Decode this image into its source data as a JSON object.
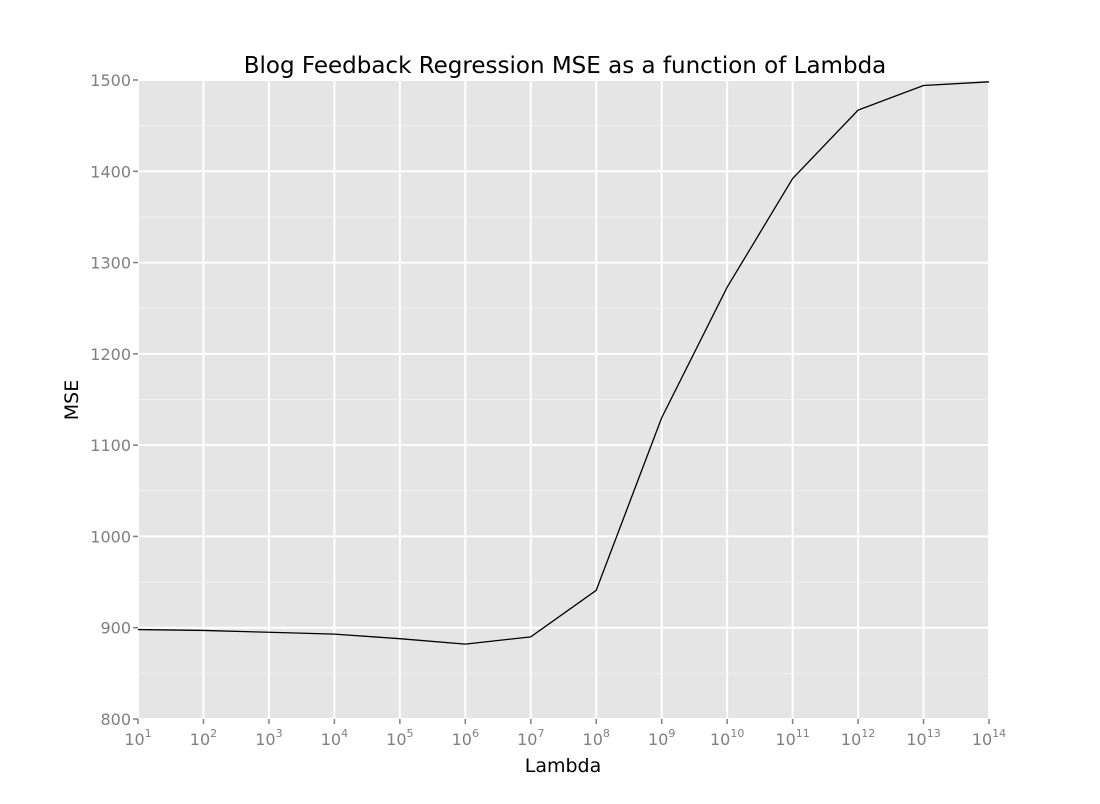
{
  "chart_data": {
    "type": "line",
    "title": "Blog Feedback Regression MSE as a function of Lambda",
    "xlabel": "Lambda",
    "ylabel": "MSE",
    "x_scale": "log",
    "xlim": [
      10,
      100000000000000
    ],
    "ylim": [
      800,
      1500
    ],
    "y_ticks": [
      800,
      900,
      1000,
      1100,
      1200,
      1300,
      1400,
      1500
    ],
    "x_ticks": [
      {
        "base": "10",
        "exp": "1"
      },
      {
        "base": "10",
        "exp": "2"
      },
      {
        "base": "10",
        "exp": "3"
      },
      {
        "base": "10",
        "exp": "4"
      },
      {
        "base": "10",
        "exp": "5"
      },
      {
        "base": "10",
        "exp": "6"
      },
      {
        "base": "10",
        "exp": "7"
      },
      {
        "base": "10",
        "exp": "8"
      },
      {
        "base": "10",
        "exp": "9"
      },
      {
        "base": "10",
        "exp": "10"
      },
      {
        "base": "10",
        "exp": "11"
      },
      {
        "base": "10",
        "exp": "12"
      },
      {
        "base": "10",
        "exp": "13"
      },
      {
        "base": "10",
        "exp": "14"
      }
    ],
    "grid": true,
    "series": [
      {
        "x": [
          10,
          100,
          1000,
          10000,
          100000,
          1000000,
          10000000,
          100000000,
          1000000000,
          10000000000,
          100000000000,
          1000000000000,
          10000000000000,
          100000000000000
        ],
        "values": [
          898,
          897,
          895,
          893,
          888,
          882,
          890,
          941,
          1130,
          1273,
          1392,
          1467,
          1494,
          1498
        ],
        "color": "#000000"
      }
    ],
    "colors": {
      "panel_background": "#e5e5e5",
      "grid_major": "#ffffff",
      "grid_minor": "#f0f0f0",
      "tick_text": "#7f7f7f",
      "line": "#000000"
    }
  }
}
